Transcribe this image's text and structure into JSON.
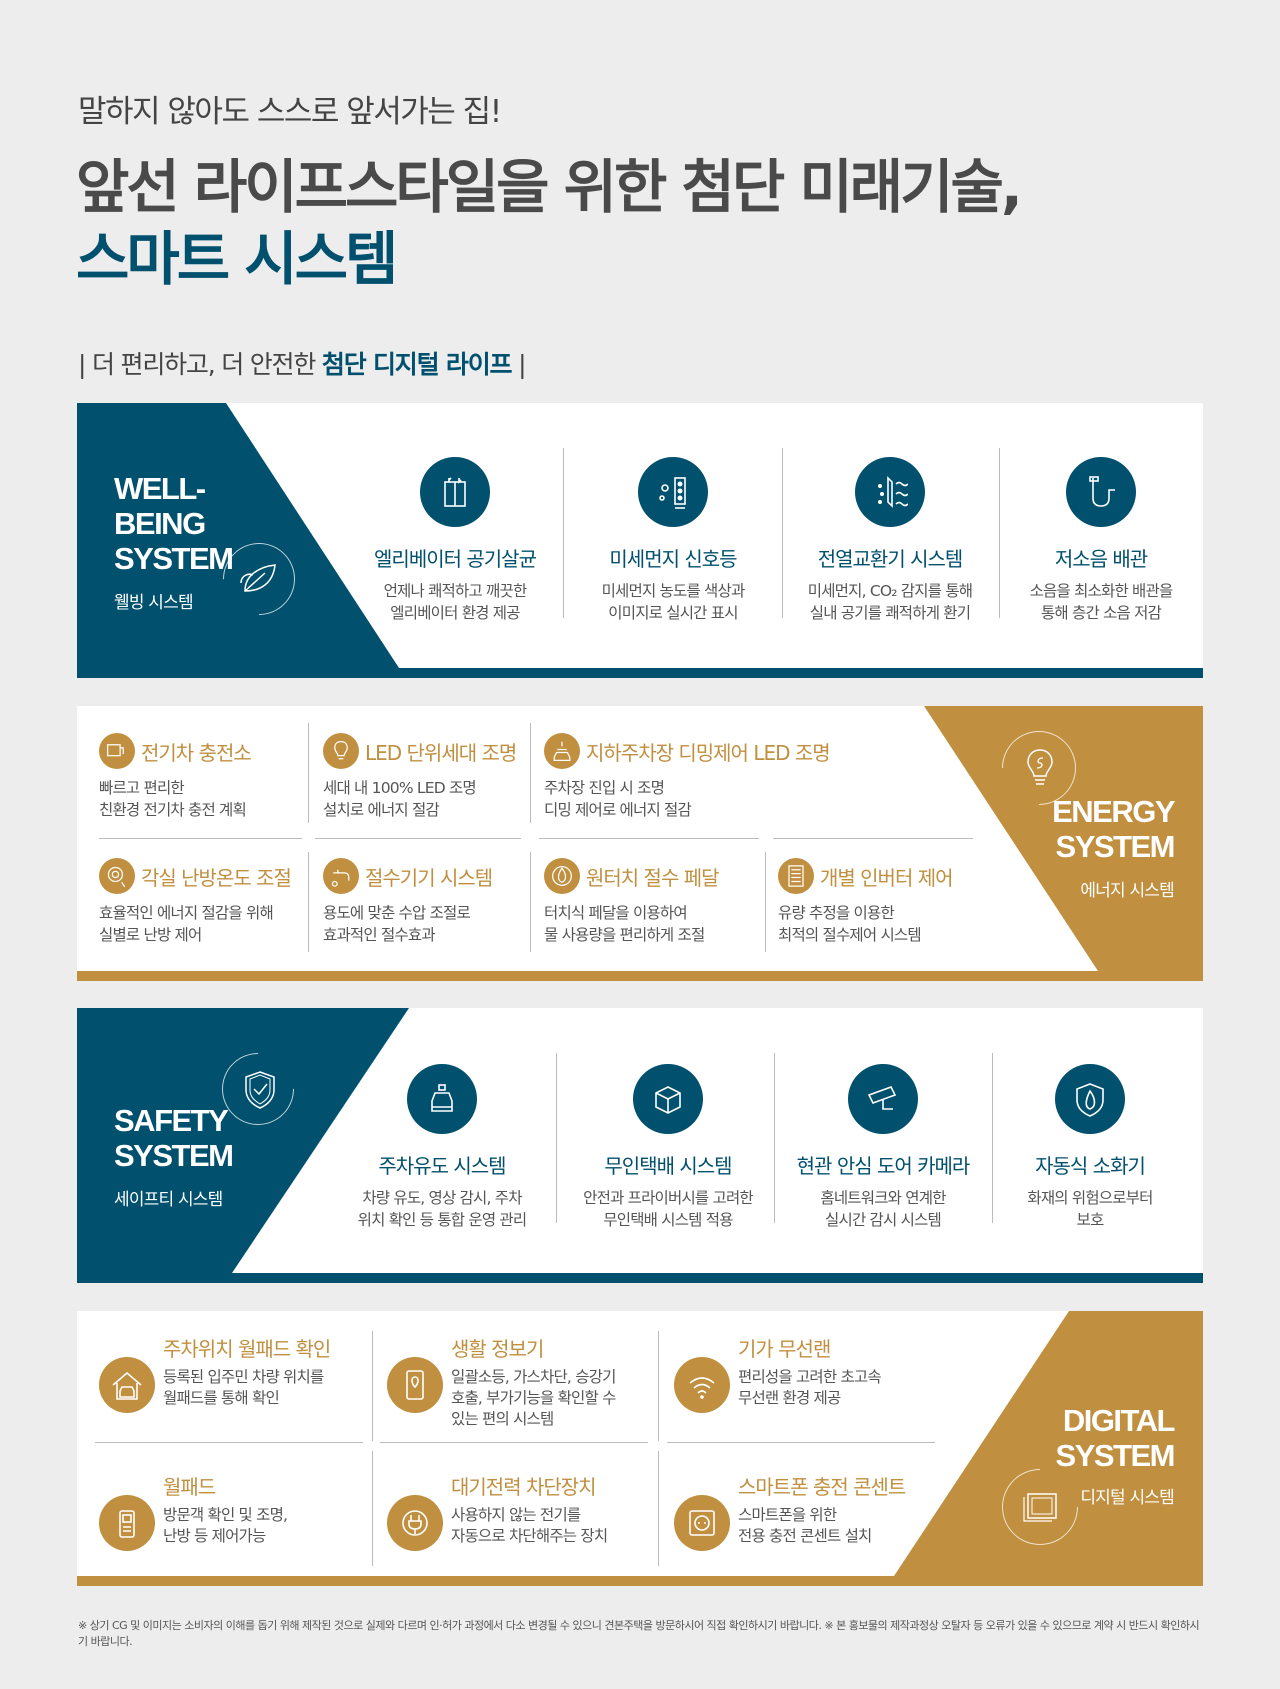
{
  "header": {
    "subtitle": "말하지 않아도 스스로 앞서가는 집!",
    "title_line1": "앞선 라이프스타일을 위한 첨단 미래기술,",
    "title_line2": "스마트 시스템",
    "tagline_prefix": "| 더 편리하고, 더 안전한 ",
    "tagline_bold": "첨단 디지털 라이프",
    "tagline_suffix": " |"
  },
  "colors": {
    "navy": "#00506e",
    "gold": "#c08f3f",
    "background": "#ededed"
  },
  "wellbeing": {
    "title": "WELL-\nBEING\nSYSTEM",
    "subtitle": "웰빙 시스템",
    "icon": "leaf-icon",
    "items": [
      {
        "icon": "elevator-icon",
        "title": "엘리베이터 공기살균",
        "desc": "언제나 쾌적하고 깨끗한\n엘리베이터 환경 제공"
      },
      {
        "icon": "dust-signal-icon",
        "title": "미세먼지 신호등",
        "desc": "미세먼지 농도를 색상과\n이미지로 실시간 표시"
      },
      {
        "icon": "ventilation-icon",
        "title": "전열교환기 시스템",
        "desc": "미세먼지, CO₂ 감지를 통해\n실내 공기를 쾌적하게 환기"
      },
      {
        "icon": "pipe-icon",
        "title": "저소음 배관",
        "desc": "소음을 최소화한 배관을\n통해 층간 소음 저감"
      }
    ]
  },
  "energy": {
    "title": "ENERGY\nSYSTEM",
    "subtitle": "에너지 시스템",
    "icon": "lightbulb-icon",
    "items": [
      {
        "icon": "ev-charger-icon",
        "title": "전기차 충전소",
        "desc": "빠르고 편리한\n친환경 전기차 충전 계획"
      },
      {
        "icon": "led-bulb-icon",
        "title": "LED 단위세대 조명",
        "desc": "세대 내 100% LED 조명\n설치로 에너지 절감"
      },
      {
        "icon": "parking-light-icon",
        "title": "지하주차장 디밍제어 LED 조명",
        "desc": "주차장 진입 시 조명\n디밍 제어로 에너지 절감"
      },
      {
        "icon": "thermostat-icon",
        "title": "각실 난방온도 조절",
        "desc": "효율적인 에너지 절감을 위해\n실별로 난방 제어"
      },
      {
        "icon": "faucet-icon",
        "title": "절수기기 시스템",
        "desc": "용도에 맞춘 수압 조절로\n효과적인 절수효과"
      },
      {
        "icon": "water-drop-icon",
        "title": "원터치 절수 페달",
        "desc": "터치식 페달을 이용하여\n물 사용량을 편리하게 조절"
      },
      {
        "icon": "inverter-icon",
        "title": "개별 인버터 제어",
        "desc": "유량 추정을 이용한\n최적의 절수제어 시스템"
      }
    ]
  },
  "safety": {
    "title": "SAFETY\nSYSTEM",
    "subtitle": "세이프티 시스템",
    "icon": "shield-check-icon",
    "items": [
      {
        "icon": "car-icon",
        "title": "주차유도 시스템",
        "desc": "차량 유도, 영상 감시, 주차\n위치 확인 등 통합 운영 관리"
      },
      {
        "icon": "parcel-box-icon",
        "title": "무인택배 시스템",
        "desc": "안전과 프라이버시를 고려한\n무인택배 시스템 적용"
      },
      {
        "icon": "cctv-camera-icon",
        "title": "현관 안심 도어 카메라",
        "desc": "홈네트워크와 연계한\n실시간 감시 시스템"
      },
      {
        "icon": "fire-shield-icon",
        "title": "자동식 소화기",
        "desc": "화재의 위험으로부터\n보호"
      }
    ]
  },
  "digital": {
    "title": "DIGITAL\nSYSTEM",
    "subtitle": "디지털 시스템",
    "icon": "tablet-icon",
    "items": [
      {
        "icon": "garage-car-icon",
        "title": "주차위치 월패드 확인",
        "desc": "등록된 입주민 차량 위치를\n월패드를 통해 확인"
      },
      {
        "icon": "phone-location-icon",
        "title": "생활 정보기",
        "desc": "일괄소등, 가스차단, 승강기\n호출, 부가기능을 확인할 수\n있는 편의 시스템"
      },
      {
        "icon": "wifi-icon",
        "title": "기가 무선랜",
        "desc": "편리성을 고려한 초고속\n무선랜 환경 제공"
      },
      {
        "icon": "wallpad-icon",
        "title": "월패드",
        "desc": "방문객 확인 및 조명,\n난방 등 제어가능"
      },
      {
        "icon": "plug-icon",
        "title": "대기전력 차단장치",
        "desc": "사용하지 않는 전기를\n자동으로 차단해주는 장치"
      },
      {
        "icon": "outlet-icon",
        "title": "스마트폰 충전 콘센트",
        "desc": "스마트폰을 위한\n전용 충전 콘센트 설치"
      }
    ]
  },
  "footnote": "※ 상기 CG 및 이미지는 소비자의 이해를 돕기 위해 제작된 것으로 실제와 다르며 인·허가 과정에서 다소 변경될 수 있으니 견본주택을 방문하시어 직접 확인하시기 바랍니다. ※ 본 홍보물의 제작과정상 오탈자 등 오류가 있을 수 있으므로 계약 시 반드시 확인하시기 바랍니다."
}
